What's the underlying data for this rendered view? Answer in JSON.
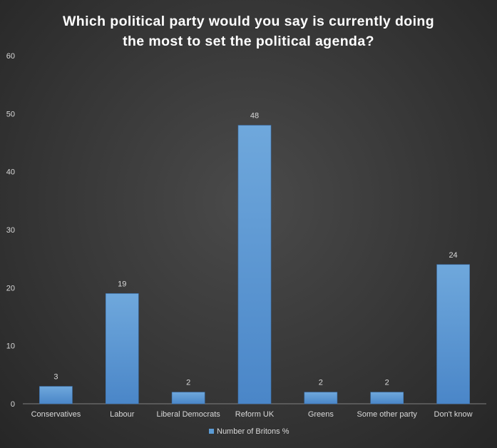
{
  "chart_data": {
    "type": "bar",
    "title_lines": [
      "Which political party would you say is currently doing",
      "the most to set the political agenda?"
    ],
    "categories": [
      "Conservatives",
      "Labour",
      "Liberal Democrats",
      "Reform UK",
      "Greens",
      "Some other party",
      "Don't know"
    ],
    "series": [
      {
        "name": "Number of Britons %",
        "values": [
          3,
          19,
          2,
          48,
          2,
          2,
          24
        ]
      }
    ],
    "ylim": [
      0,
      60
    ],
    "yticks": [
      0,
      10,
      20,
      30,
      40,
      50,
      60
    ],
    "grid": false,
    "legend_position": "bottom",
    "bar_color": "#5b9bd5"
  }
}
